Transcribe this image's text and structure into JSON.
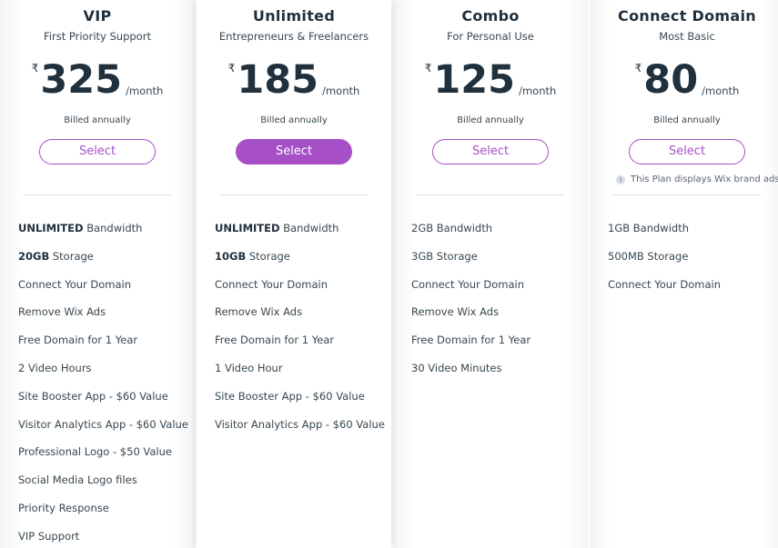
{
  "plans": [
    {
      "name": "VIP",
      "subtitle": "First Priority Support",
      "currency": "₹",
      "price": "325",
      "period": "/month",
      "billing": "Billed annually",
      "button": "Select",
      "highlighted": false,
      "features": [
        {
          "strong": "UNLIMITED",
          "text": "Bandwidth"
        },
        {
          "strong": "20GB",
          "text": "Storage"
        },
        {
          "text": "Connect Your Domain"
        },
        {
          "text": "Remove Wix Ads"
        },
        {
          "text": "Free Domain for 1 Year"
        },
        {
          "text": "2 Video Hours"
        },
        {
          "text": "Site Booster App - $60 Value"
        },
        {
          "text": "Visitor Analytics App - $60 Value"
        },
        {
          "text": "Professional Logo - $50 Value"
        },
        {
          "text": "Social Media Logo files"
        },
        {
          "text": "Priority Response"
        },
        {
          "text": "VIP Support"
        }
      ]
    },
    {
      "name": "Unlimited",
      "subtitle": "Entrepreneurs & Freelancers",
      "currency": "₹",
      "price": "185",
      "period": "/month",
      "billing": "Billed annually",
      "button": "Select",
      "highlighted": true,
      "features": [
        {
          "strong": "UNLIMITED",
          "text": "Bandwidth"
        },
        {
          "strong": "10GB",
          "text": "Storage"
        },
        {
          "text": "Connect Your Domain"
        },
        {
          "text": "Remove Wix Ads"
        },
        {
          "text": "Free Domain for 1 Year"
        },
        {
          "text": "1 Video Hour"
        },
        {
          "text": "Site Booster App - $60 Value"
        },
        {
          "text": "Visitor Analytics App - $60 Value"
        }
      ]
    },
    {
      "name": "Combo",
      "subtitle": "For Personal Use",
      "currency": "₹",
      "price": "125",
      "period": "/month",
      "billing": "Billed annually",
      "button": "Select",
      "highlighted": false,
      "features": [
        {
          "text": "2GB Bandwidth"
        },
        {
          "text": "3GB Storage"
        },
        {
          "text": "Connect Your Domain"
        },
        {
          "text": "Remove Wix Ads"
        },
        {
          "text": "Free Domain for 1 Year"
        },
        {
          "text": "30 Video Minutes"
        }
      ]
    },
    {
      "name": "Connect Domain",
      "subtitle": "Most Basic",
      "currency": "₹",
      "price": "80",
      "period": "/month",
      "billing": "Billed annually",
      "button": "Select",
      "highlighted": false,
      "note": "This Plan displays Wix brand ads",
      "features": [
        {
          "text": "1GB Bandwidth"
        },
        {
          "text": "500MB Storage"
        },
        {
          "text": "Connect Your Domain"
        }
      ]
    }
  ]
}
